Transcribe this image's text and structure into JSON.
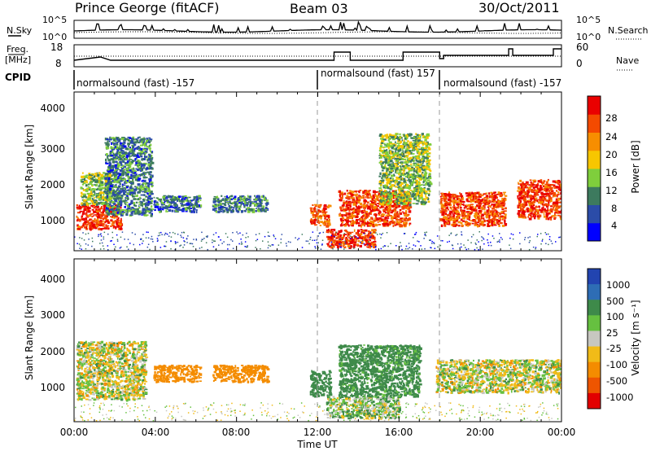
{
  "header": {
    "station": "Prince George (fitACF)",
    "beam": "Beam 03",
    "date": "30/Oct/2011"
  },
  "top_panel": {
    "left_label": "N.Sky",
    "right_label": "N.Search",
    "left_ticks": [
      "10^5",
      "10^0"
    ],
    "right_ticks": [
      "10^5",
      "10^0"
    ]
  },
  "freq_panel": {
    "left_label_1": "Freq.",
    "left_label_2": "[MHz]",
    "right_label": "Nave",
    "left_ticks": [
      "18",
      "8"
    ],
    "right_ticks": [
      "60",
      "0"
    ]
  },
  "cpid_panel": {
    "label": "CPID",
    "segments": [
      {
        "text": "normalsound (fast) -157"
      },
      {
        "text": "normalsound (fast) 157"
      },
      {
        "text": "normalsound (fast) -157"
      }
    ]
  },
  "power_panel": {
    "ylabel": "Slant Range [km]",
    "yticks": [
      "4000",
      "3000",
      "2000",
      "1000"
    ],
    "colorbar_label": "Power [dB]",
    "colorbar_ticks": [
      "28",
      "24",
      "20",
      "16",
      "12",
      "8",
      "4"
    ],
    "colors": [
      "#0000ff",
      "#2b4ca8",
      "#3d7a5e",
      "#7fce3c",
      "#f7c600",
      "#f78e00",
      "#f44a00",
      "#ea0000"
    ]
  },
  "velocity_panel": {
    "ylabel": "Slant Range [km]",
    "yticks": [
      "4000",
      "3000",
      "2000",
      "1000"
    ],
    "colorbar_label": "Velocity [m s⁻¹]",
    "colorbar_ticks": [
      "1000",
      "500",
      "100",
      "25",
      "-25",
      "-100",
      "-500",
      "-1000"
    ],
    "colors": [
      "#2244b0",
      "#2e6db5",
      "#3e8a4a",
      "#66c040",
      "#c7c7c0",
      "#f1bb18",
      "#f48c00",
      "#ee5500",
      "#e20000"
    ]
  },
  "x_axis": {
    "ticks": [
      "00:00",
      "04:00",
      "08:00",
      "12:00",
      "16:00",
      "20:00",
      "00:00"
    ],
    "label": "Time UT"
  },
  "chart_data": {
    "type": "heatmap",
    "x_range_hours": [
      0,
      24
    ],
    "y_range_km": [
      180,
      4500
    ],
    "cpid_changes_hours": [
      12.0,
      18.0
    ],
    "power_bands": [
      {
        "t_start": 0.1,
        "t_end": 2.3,
        "r_low": 800,
        "r_high": 1500,
        "db": 28
      },
      {
        "t_start": 0.3,
        "t_end": 1.8,
        "r_low": 1500,
        "r_high": 2400,
        "db": 14
      },
      {
        "t_start": 1.5,
        "t_end": 3.8,
        "r_low": 1200,
        "r_high": 3400,
        "db": 9
      },
      {
        "t_start": 3.9,
        "t_end": 6.2,
        "r_low": 1300,
        "r_high": 1750,
        "db": 8
      },
      {
        "t_start": 6.8,
        "t_end": 9.5,
        "r_low": 1300,
        "r_high": 1750,
        "db": 9
      },
      {
        "t_start": 11.6,
        "t_end": 12.6,
        "r_low": 900,
        "r_high": 1500,
        "db": 26
      },
      {
        "t_start": 12.4,
        "t_end": 14.8,
        "r_low": 300,
        "r_high": 800,
        "db": 28
      },
      {
        "t_start": 13.0,
        "t_end": 16.5,
        "r_low": 900,
        "r_high": 1900,
        "db": 27
      },
      {
        "t_start": 15.0,
        "t_end": 17.5,
        "r_low": 1500,
        "r_high": 3500,
        "db": 14
      },
      {
        "t_start": 18.0,
        "t_end": 21.2,
        "r_low": 900,
        "r_high": 1850,
        "db": 26
      },
      {
        "t_start": 21.8,
        "t_end": 24.0,
        "r_low": 1100,
        "r_high": 2200,
        "db": 28
      }
    ],
    "velocity_bands": [
      {
        "t_start": 0.1,
        "t_end": 3.5,
        "r_low": 800,
        "r_high": 2400,
        "v": 0
      },
      {
        "t_start": 3.9,
        "t_end": 6.2,
        "r_low": 1300,
        "r_high": 1750,
        "v": -300
      },
      {
        "t_start": 6.8,
        "t_end": 9.5,
        "r_low": 1300,
        "r_high": 1750,
        "v": -350
      },
      {
        "t_start": 11.6,
        "t_end": 12.6,
        "r_low": 900,
        "r_high": 1600,
        "v": 300
      },
      {
        "t_start": 12.4,
        "t_end": 16.0,
        "r_low": 300,
        "r_high": 900,
        "v": 60
      },
      {
        "t_start": 13.0,
        "t_end": 17.0,
        "r_low": 900,
        "r_high": 2300,
        "v": 200
      },
      {
        "t_start": 17.8,
        "t_end": 24.0,
        "r_low": 1000,
        "r_high": 1900,
        "v": 0
      }
    ]
  }
}
